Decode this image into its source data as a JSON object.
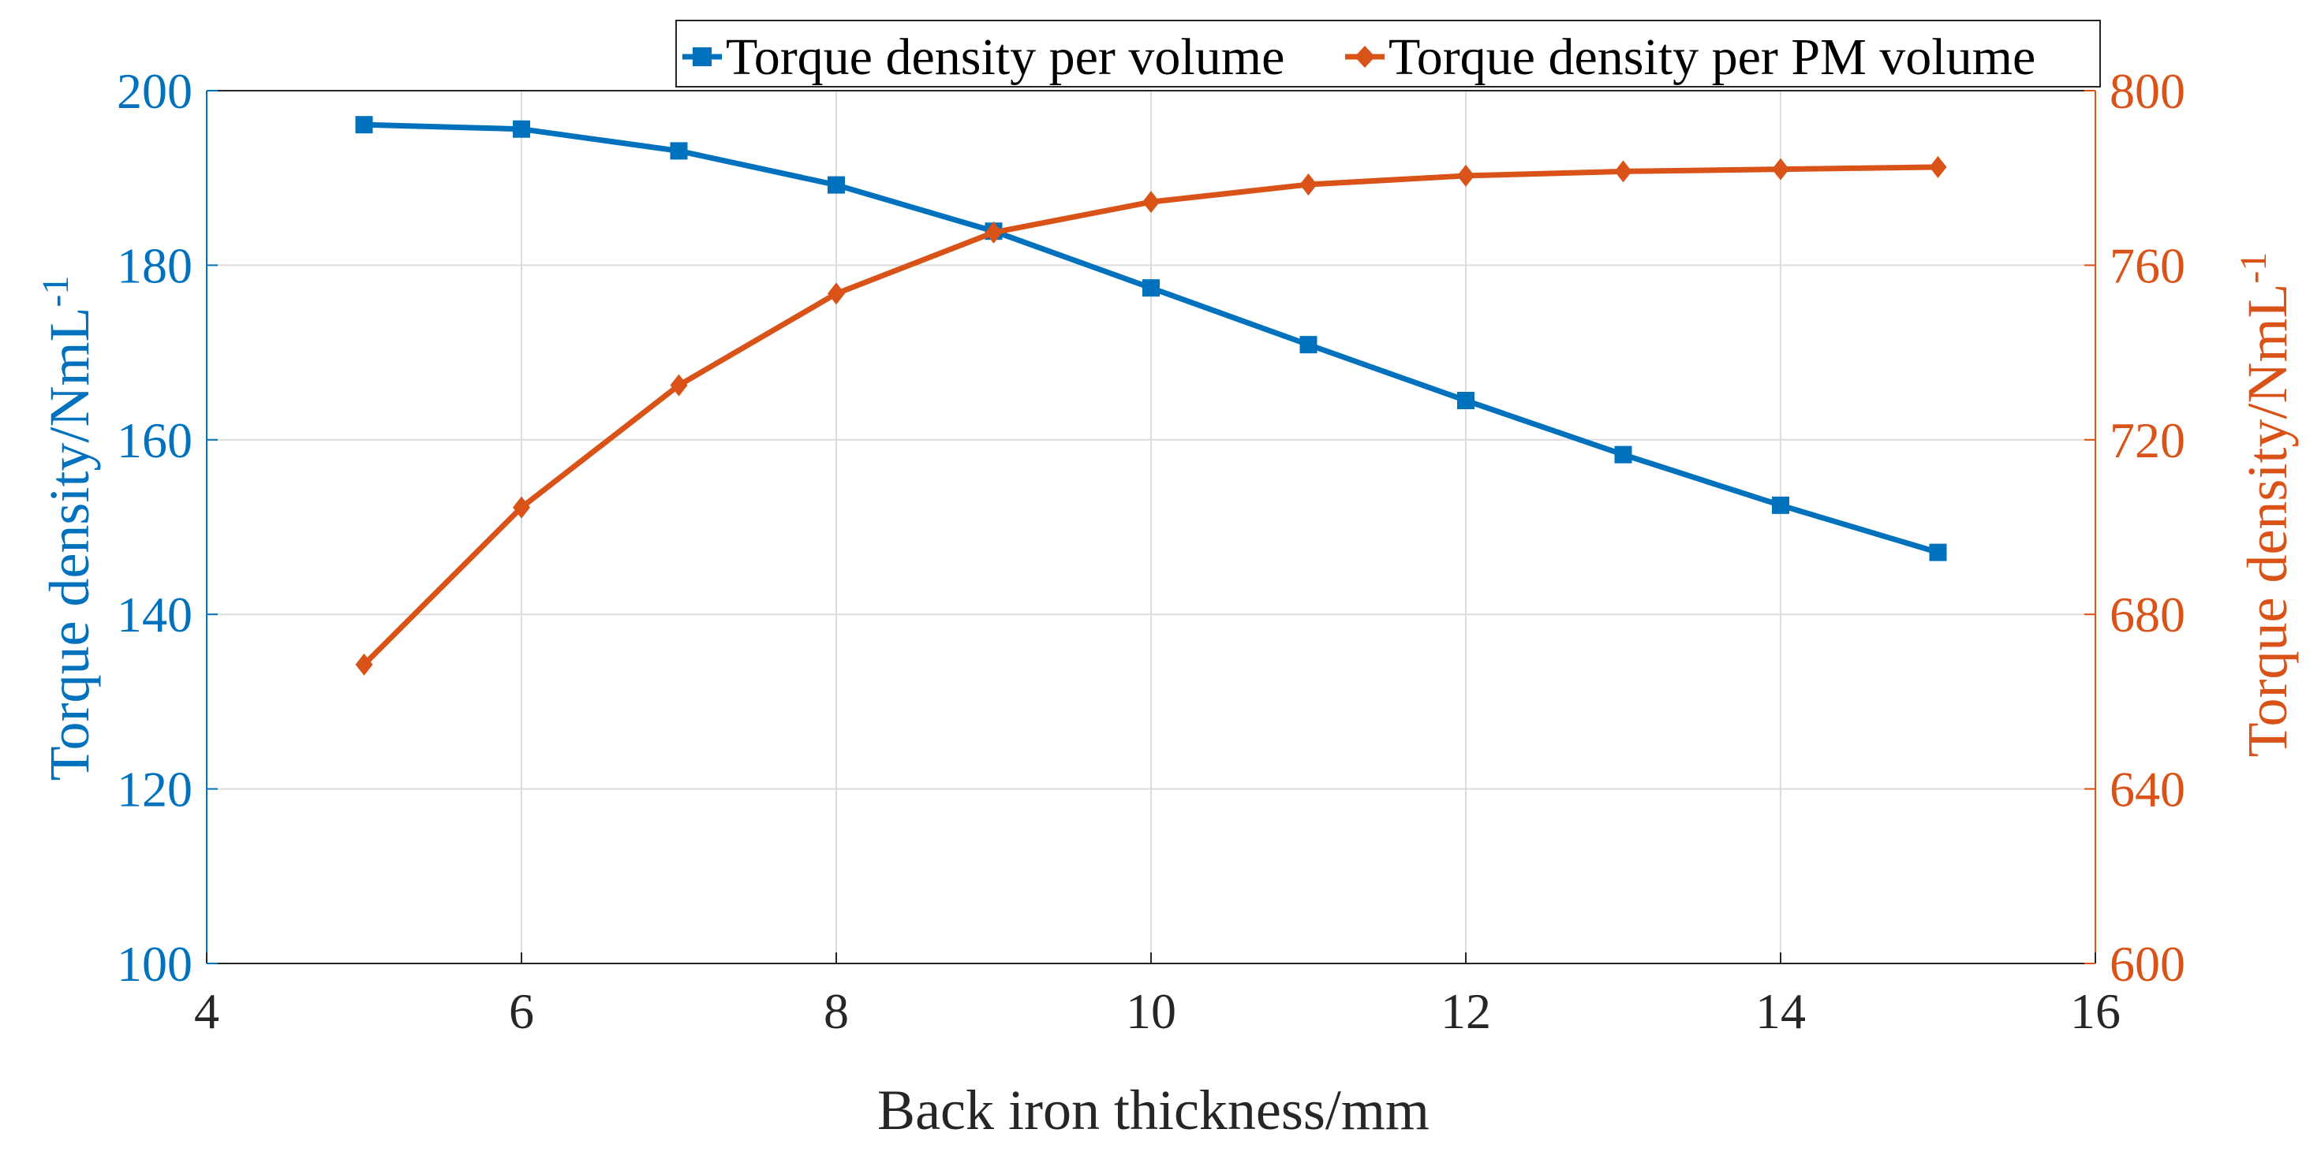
{
  "chart_data": {
    "type": "line",
    "xlabel": "Back iron thickness/mm",
    "ylabel_left": "Torque density/NmL",
    "ylabel_right": "Torque density/NmL",
    "ylabel_superscript": "-1",
    "xlim": [
      4,
      16
    ],
    "ylim_left": [
      100,
      200
    ],
    "ylim_right": [
      600,
      800
    ],
    "xticks": [
      4,
      6,
      8,
      10,
      12,
      14,
      16
    ],
    "yticks_left": [
      100,
      120,
      140,
      160,
      180,
      200
    ],
    "yticks_right": [
      600,
      640,
      680,
      720,
      760,
      800
    ],
    "grid": true,
    "legend_position": "top-right",
    "x": [
      5,
      6,
      7,
      8,
      9,
      10,
      11,
      12,
      13,
      14,
      15
    ],
    "series": [
      {
        "name": "Torque density per volume",
        "axis": "left",
        "marker": "square",
        "color": "#0072BD",
        "values": [
          196.1,
          195.6,
          193.1,
          189.2,
          183.9,
          177.4,
          170.9,
          164.5,
          158.3,
          152.5,
          147.1
        ]
      },
      {
        "name": "Torque density per PM volume",
        "axis": "right",
        "marker": "diamond",
        "color": "#D95319",
        "values": [
          668.5,
          704.5,
          732.5,
          753.5,
          767.5,
          774.5,
          778.5,
          780.5,
          781.5,
          782.0,
          782.5
        ]
      }
    ]
  }
}
